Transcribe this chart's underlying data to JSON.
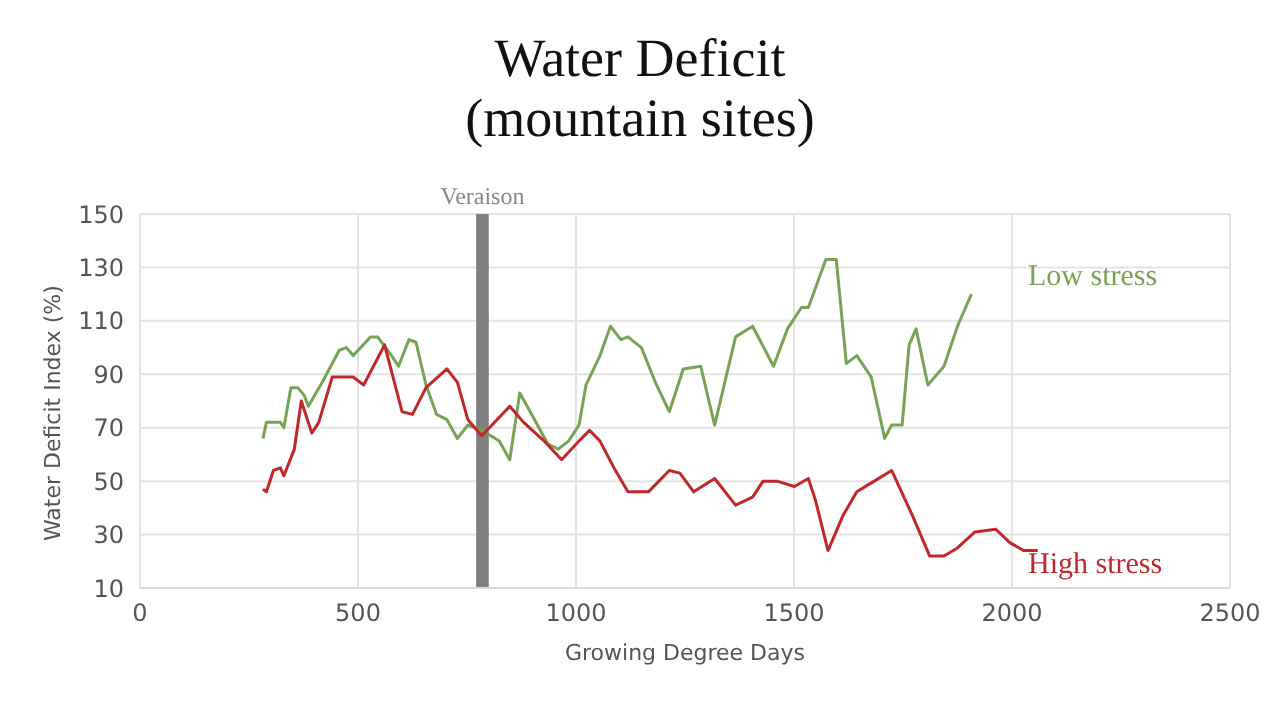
{
  "chart_data": {
    "type": "line",
    "title": "Water Deficit",
    "subtitle": "(mountain sites)",
    "xlabel": "Growing Degree Days",
    "ylabel": "Water Deficit Index (%)",
    "xlim": [
      0,
      2500
    ],
    "xticks": [
      0,
      500,
      1000,
      1500,
      2000,
      2500
    ],
    "ylim": [
      10,
      150
    ],
    "yticks": [
      10,
      30,
      50,
      70,
      90,
      110,
      130,
      150
    ],
    "grid": true,
    "legend": false,
    "marker": "none",
    "line_style": "solid",
    "bands": [
      {
        "axis": "x",
        "from": 771,
        "to": 800,
        "label": "Veraison",
        "color": "#7f7f7f"
      }
    ],
    "series": [
      {
        "name": "Low stress",
        "color": "#77a454",
        "x": [
          282,
          290,
          322,
          330,
          346,
          362,
          377,
          386,
          418,
          457,
          473,
          489,
          529,
          545,
          577,
          593,
          617,
          633,
          656,
          680,
          704,
          728,
          752,
          784,
          824,
          848,
          871,
          895,
          935,
          959,
          983,
          1007,
          1023,
          1055,
          1079,
          1103,
          1119,
          1150,
          1182,
          1214,
          1246,
          1286,
          1318,
          1366,
          1405,
          1453,
          1485,
          1517,
          1533,
          1573,
          1597,
          1620,
          1644,
          1677,
          1708,
          1724,
          1748,
          1764,
          1780,
          1807,
          1844,
          1875,
          1907
        ],
        "values": [
          66,
          72,
          72,
          70,
          85,
          85,
          82,
          78,
          87,
          99,
          100,
          97,
          104,
          104,
          97,
          93,
          103,
          102,
          86,
          75,
          73,
          66,
          71,
          69,
          65,
          58,
          83,
          76,
          64,
          62,
          65,
          71,
          86,
          97,
          108,
          103,
          104,
          100,
          87,
          76,
          92,
          93,
          71,
          104,
          108,
          93,
          107,
          115,
          115,
          133,
          133,
          94,
          97,
          89,
          66,
          71,
          71,
          101,
          107,
          86,
          93,
          108,
          120
        ]
      },
      {
        "name": "High stress",
        "color": "#c0282a",
        "x": [
          282,
          290,
          306,
          322,
          330,
          354,
          370,
          394,
          410,
          441,
          489,
          513,
          561,
          601,
          625,
          656,
          704,
          728,
          752,
          784,
          848,
          880,
          927,
          967,
          1007,
          1031,
          1055,
          1087,
          1119,
          1166,
          1214,
          1238,
          1270,
          1318,
          1366,
          1405,
          1429,
          1461,
          1501,
          1533,
          1549,
          1578,
          1612,
          1644,
          1684,
          1724,
          1772,
          1811,
          1844,
          1875,
          1915,
          1963,
          1995,
          2027,
          2059
        ],
        "values": [
          47,
          46,
          54,
          55,
          52,
          62,
          80,
          68,
          72,
          89,
          89,
          86,
          101,
          76,
          75,
          85,
          92,
          87,
          73,
          67,
          78,
          72,
          65,
          58,
          65,
          69,
          65,
          55,
          46,
          46,
          54,
          53,
          46,
          51,
          41,
          44,
          50,
          50,
          48,
          51,
          43,
          24,
          37,
          46,
          50,
          54,
          37,
          22,
          22,
          25,
          31,
          32,
          27,
          24,
          24
        ]
      }
    ]
  }
}
